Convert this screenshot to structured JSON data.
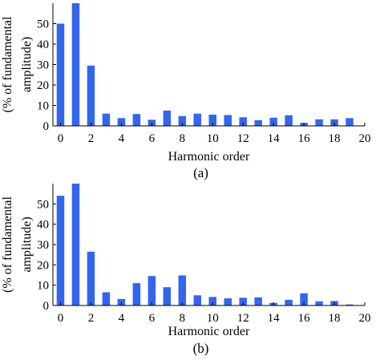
{
  "chart_data": [
    {
      "type": "bar",
      "panel_label": "(a)",
      "xlabel": "Harmonic order",
      "ylabel_lines": [
        "(% of fundamental",
        "amplitude)"
      ],
      "x": [
        0,
        1,
        2,
        3,
        4,
        5,
        6,
        7,
        8,
        9,
        10,
        11,
        12,
        13,
        14,
        15,
        16,
        17,
        18,
        19
      ],
      "values": [
        50,
        60,
        29.5,
        6,
        3.8,
        5.8,
        3,
        7.5,
        4.8,
        6,
        5.5,
        5.3,
        4.2,
        2.8,
        4,
        5.2,
        1.5,
        3.2,
        3.2,
        3.8
      ],
      "ylim": [
        0,
        60
      ],
      "xlim": [
        -0.5,
        20
      ],
      "y_ticks": [
        0,
        10,
        20,
        30,
        40,
        50
      ],
      "x_ticks": [
        0,
        2,
        4,
        6,
        8,
        10,
        12,
        14,
        16,
        18,
        20
      ],
      "bar_color": "#3366ee",
      "grid": false
    },
    {
      "type": "bar",
      "panel_label": "(b)",
      "xlabel": "Harmonic order",
      "ylabel_lines": [
        "(% of fundamental",
        "amplitude)"
      ],
      "x": [
        0,
        1,
        2,
        3,
        4,
        5,
        6,
        7,
        8,
        9,
        10,
        11,
        12,
        13,
        14,
        15,
        16,
        17,
        18,
        19
      ],
      "values": [
        54,
        60,
        26.5,
        6.5,
        3.2,
        11,
        14.5,
        9,
        14.8,
        5,
        4.2,
        3.5,
        3.8,
        4,
        1.3,
        2.8,
        6,
        2,
        2.2,
        0.5
      ],
      "ylim": [
        0,
        60
      ],
      "xlim": [
        -0.5,
        20
      ],
      "y_ticks": [
        0,
        10,
        20,
        30,
        40,
        50
      ],
      "x_ticks": [
        0,
        2,
        4,
        6,
        8,
        10,
        12,
        14,
        16,
        18,
        20
      ],
      "bar_color": "#3366ee",
      "grid": false
    }
  ]
}
